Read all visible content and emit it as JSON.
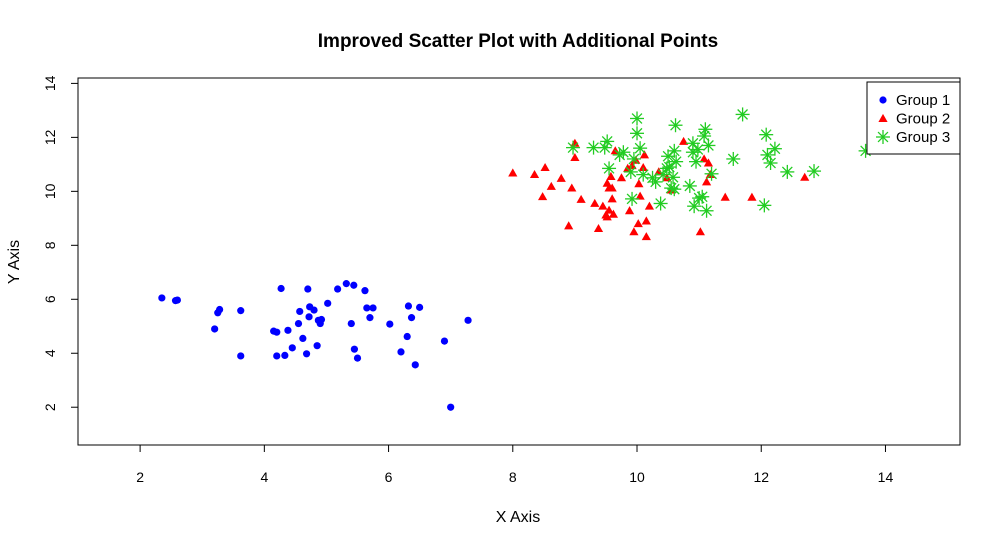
{
  "chart_data": {
    "type": "scatter",
    "title": "Improved Scatter Plot with Additional Points",
    "xlabel": "X Axis",
    "ylabel": "Y Axis",
    "xlim": [
      1,
      15.2
    ],
    "ylim": [
      0.6,
      14.2
    ],
    "xticks": [
      2,
      4,
      6,
      8,
      10,
      12,
      14
    ],
    "yticks": [
      2,
      4,
      6,
      8,
      10,
      12,
      14
    ],
    "grid": false,
    "legend_position": "top-right",
    "series": [
      {
        "name": "Group 1",
        "marker": "circle",
        "color": "#0000ff",
        "points": [
          [
            2.35,
            6.05
          ],
          [
            2.57,
            5.95
          ],
          [
            2.6,
            5.97
          ],
          [
            3.2,
            4.9
          ],
          [
            3.25,
            5.5
          ],
          [
            3.28,
            5.62
          ],
          [
            3.62,
            3.9
          ],
          [
            3.62,
            5.58
          ],
          [
            4.15,
            4.82
          ],
          [
            4.2,
            4.78
          ],
          [
            4.2,
            3.9
          ],
          [
            4.27,
            6.4
          ],
          [
            4.33,
            3.92
          ],
          [
            4.38,
            4.85
          ],
          [
            4.45,
            4.2
          ],
          [
            4.55,
            5.1
          ],
          [
            4.57,
            5.55
          ],
          [
            4.62,
            4.55
          ],
          [
            4.68,
            3.98
          ],
          [
            4.7,
            6.38
          ],
          [
            4.72,
            5.35
          ],
          [
            4.73,
            5.72
          ],
          [
            4.8,
            5.6
          ],
          [
            4.85,
            4.28
          ],
          [
            4.87,
            5.22
          ],
          [
            4.9,
            5.1
          ],
          [
            4.92,
            5.25
          ],
          [
            5.02,
            5.85
          ],
          [
            5.18,
            6.38
          ],
          [
            5.32,
            6.58
          ],
          [
            5.4,
            5.1
          ],
          [
            5.44,
            6.52
          ],
          [
            5.45,
            4.15
          ],
          [
            5.5,
            3.82
          ],
          [
            5.62,
            6.32
          ],
          [
            5.65,
            5.68
          ],
          [
            5.7,
            5.32
          ],
          [
            5.75,
            5.68
          ],
          [
            6.02,
            5.08
          ],
          [
            6.2,
            4.05
          ],
          [
            6.3,
            4.62
          ],
          [
            6.32,
            5.75
          ],
          [
            6.37,
            5.32
          ],
          [
            6.43,
            3.57
          ],
          [
            6.5,
            5.7
          ],
          [
            6.9,
            4.45
          ],
          [
            7.0,
            2.0
          ],
          [
            7.28,
            5.22
          ]
        ]
      },
      {
        "name": "Group 2",
        "marker": "triangle",
        "color": "#ff0000",
        "points": [
          [
            8.0,
            10.68
          ],
          [
            8.35,
            10.62
          ],
          [
            8.48,
            9.8
          ],
          [
            8.52,
            10.88
          ],
          [
            8.62,
            10.18
          ],
          [
            8.78,
            10.48
          ],
          [
            8.9,
            8.72
          ],
          [
            8.95,
            10.12
          ],
          [
            9.0,
            11.25
          ],
          [
            9.0,
            11.78
          ],
          [
            9.1,
            9.7
          ],
          [
            9.32,
            9.55
          ],
          [
            9.38,
            8.62
          ],
          [
            9.45,
            9.45
          ],
          [
            9.5,
            9.12
          ],
          [
            9.52,
            10.3
          ],
          [
            9.52,
            9.05
          ],
          [
            9.55,
            10.12
          ],
          [
            9.55,
            9.3
          ],
          [
            9.58,
            10.55
          ],
          [
            9.6,
            9.72
          ],
          [
            9.6,
            10.12
          ],
          [
            9.62,
            9.15
          ],
          [
            9.65,
            11.5
          ],
          [
            9.75,
            10.5
          ],
          [
            9.85,
            10.85
          ],
          [
            9.88,
            9.28
          ],
          [
            9.92,
            10.95
          ],
          [
            9.95,
            8.5
          ],
          [
            9.98,
            11.15
          ],
          [
            10.02,
            8.8
          ],
          [
            10.03,
            10.28
          ],
          [
            10.05,
            9.82
          ],
          [
            10.1,
            10.88
          ],
          [
            10.12,
            11.35
          ],
          [
            10.15,
            8.9
          ],
          [
            10.15,
            8.32
          ],
          [
            10.2,
            9.45
          ],
          [
            10.35,
            10.72
          ],
          [
            10.48,
            10.5
          ],
          [
            10.55,
            10.05
          ],
          [
            10.75,
            11.85
          ],
          [
            11.02,
            8.5
          ],
          [
            11.08,
            11.2
          ],
          [
            11.12,
            10.35
          ],
          [
            11.15,
            11.05
          ],
          [
            11.18,
            10.62
          ],
          [
            11.42,
            9.78
          ],
          [
            11.85,
            9.78
          ],
          [
            12.7,
            10.52
          ]
        ]
      },
      {
        "name": "Group 3",
        "marker": "asterisk",
        "color": "#22cc22",
        "points": [
          [
            8.97,
            11.62
          ],
          [
            9.3,
            11.62
          ],
          [
            9.48,
            11.62
          ],
          [
            9.52,
            11.85
          ],
          [
            9.55,
            10.85
          ],
          [
            9.72,
            11.35
          ],
          [
            9.78,
            11.45
          ],
          [
            9.9,
            10.72
          ],
          [
            9.92,
            9.72
          ],
          [
            9.95,
            11.2
          ],
          [
            10.0,
            12.7
          ],
          [
            10.0,
            12.15
          ],
          [
            10.05,
            11.6
          ],
          [
            10.1,
            10.62
          ],
          [
            10.25,
            10.5
          ],
          [
            10.3,
            10.35
          ],
          [
            10.38,
            9.55
          ],
          [
            10.42,
            10.62
          ],
          [
            10.48,
            10.85
          ],
          [
            10.5,
            11.3
          ],
          [
            10.52,
            10.9
          ],
          [
            10.55,
            10.12
          ],
          [
            10.58,
            10.52
          ],
          [
            10.6,
            10.08
          ],
          [
            10.6,
            11.5
          ],
          [
            10.62,
            12.45
          ],
          [
            10.63,
            11.1
          ],
          [
            10.85,
            10.2
          ],
          [
            10.9,
            11.78
          ],
          [
            10.9,
            11.45
          ],
          [
            10.92,
            9.45
          ],
          [
            10.95,
            11.1
          ],
          [
            10.98,
            11.55
          ],
          [
            11.0,
            9.75
          ],
          [
            11.05,
            9.8
          ],
          [
            11.08,
            12.05
          ],
          [
            11.1,
            12.3
          ],
          [
            11.12,
            9.28
          ],
          [
            11.15,
            11.7
          ],
          [
            11.2,
            10.65
          ],
          [
            11.55,
            11.2
          ],
          [
            11.7,
            12.85
          ],
          [
            12.05,
            9.48
          ],
          [
            12.08,
            12.1
          ],
          [
            12.1,
            11.35
          ],
          [
            12.15,
            11.05
          ],
          [
            12.22,
            11.58
          ],
          [
            12.42,
            10.72
          ],
          [
            12.85,
            10.75
          ],
          [
            13.68,
            11.5
          ]
        ]
      }
    ]
  }
}
